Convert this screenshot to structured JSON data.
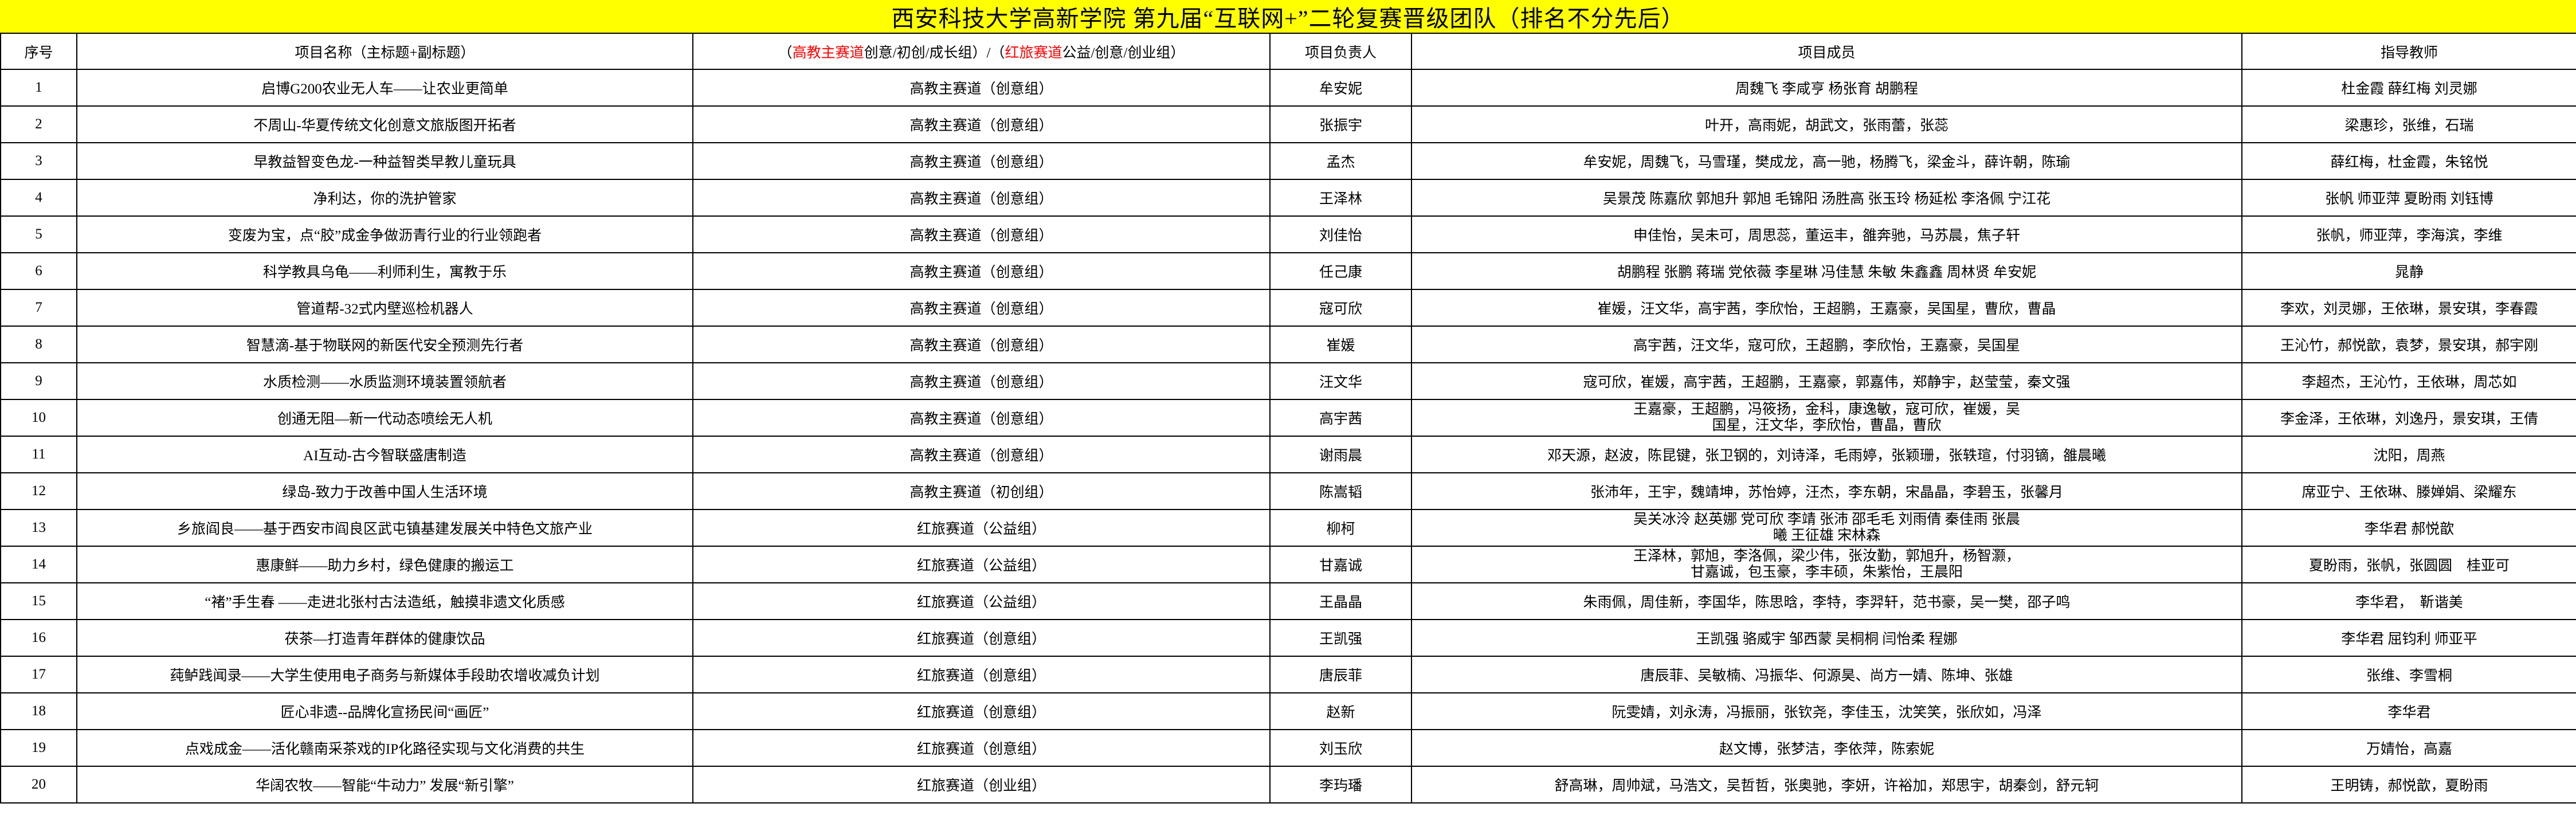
{
  "title": "西安科技大学高新学院 第九届“互联网+”二轮复赛晋级团队（排名不分先后）",
  "headers": {
    "index": "序号",
    "project": "项目名称（主标题+副标题）",
    "track_p1": "（",
    "track_red1": "高教主赛道",
    "track_p2": "创意/初创/成长组）/（",
    "track_red2": "红旅赛道",
    "track_p3": "公益/创意/创业组）",
    "leader": "项目负责人",
    "members": "项目成员",
    "advisors": "指导教师"
  },
  "colors": {
    "title_bg": "#ffff00",
    "highlight_text": "#ff0000"
  },
  "rows": [
    {
      "no": "1",
      "project": "启博G200农业无人车——让农业更简单",
      "track": "高教主赛道（创意组）",
      "leader": "牟安妮",
      "members": "周魏飞 李咸亨 杨张育 胡鹏程",
      "advisors": "杜金霞 薛红梅 刘灵娜"
    },
    {
      "no": "2",
      "project": "不周山-华夏传统文化创意文旅版图开拓者",
      "track": "高教主赛道（创意组）",
      "leader": "张振宇",
      "members": "叶开，高雨妮，胡武文，张雨蕾，张蕊",
      "advisors": "梁惠珍，张维，石瑞"
    },
    {
      "no": "3",
      "project": "早教益智变色龙-一种益智类早教儿童玩具",
      "track": "高教主赛道（创意组）",
      "leader": "孟杰",
      "members": "牟安妮，周魏飞，马雪瑾，樊成龙，高一驰，杨腾飞，梁金斗，薛许朝，陈瑜",
      "advisors": "薛红梅，杜金霞，朱铭悦"
    },
    {
      "no": "4",
      "project": "净利达，你的洗护管家",
      "track": "高教主赛道（创意组）",
      "leader": "王泽林",
      "members": "吴景茂 陈嘉欣 郭旭升 郭旭 毛锦阳 汤胜高 张玉玲 杨延松 李洛佩 宁江花",
      "advisors": "张帆 师亚萍 夏盼雨 刘钰博"
    },
    {
      "no": "5",
      "project": "变废为宝，点“胶”成金争做沥青行业的行业领跑者",
      "track": "高教主赛道（创意组）",
      "leader": "刘佳怡",
      "members": "申佳怡，吴未可，周思蕊，董运丰，雒奔驰，马苏晨，焦子轩",
      "advisors": "张帆，师亚萍，李海滨，李维"
    },
    {
      "no": "6",
      "project": "科学教具乌龟——利师利生，寓教于乐",
      "track": "高教主赛道（创意组）",
      "leader": "任己康",
      "members": "胡鹏程 张鹏 蒋瑞 党依薇 李星琳 冯佳慧 朱敏 朱鑫鑫 周林贤 牟安妮",
      "advisors": "晁静"
    },
    {
      "no": "7",
      "project": "管道帮-32式内壁巡检机器人",
      "track": "高教主赛道（创意组）",
      "leader": "寇可欣",
      "members": "崔媛，汪文华，高宇茜，李欣怡，王超鹏，王嘉豪，吴国星，曹欣，曹晶",
      "advisors": "李欢，刘灵娜，王依琳，景安琪，李春霞"
    },
    {
      "no": "8",
      "project": "智慧滴-基于物联网的新医代安全预测先行者",
      "track": "高教主赛道（创意组）",
      "leader": "崔媛",
      "members": "高宇茜，汪文华，寇可欣，王超鹏，李欣怡，王嘉豪，吴国星",
      "advisors": "王沁竹，郝悦歆，袁梦，景安琪，郝宇刚"
    },
    {
      "no": "9",
      "project": "水质检测——水质监测环境装置领航者",
      "track": "高教主赛道（创意组）",
      "leader": "汪文华",
      "members": "寇可欣，崔媛，高宇茜，王超鹏，王嘉豪，郭嘉伟，郑静宇，赵莹莹，秦文强",
      "advisors": "李超杰，王沁竹，王依琳，周芯如"
    },
    {
      "no": "10",
      "project": "创通无阻—新一代动态喷绘无人机",
      "track": "高教主赛道（创意组）",
      "leader": "高宇茜",
      "members": "王嘉豪，王超鹏，冯筱扬，金科，康逸敏，寇可欣，崔媛，吴国星，汪文华，李欣怡，曹晶，曹欣",
      "advisors": "李金泽，王依琳，刘逸丹，景安琪，王倩"
    },
    {
      "no": "11",
      "project": "AI互动-古今智联盛唐制造",
      "track": "高教主赛道（创意组）",
      "leader": "谢雨晨",
      "members": "邓天源，赵波，陈昆键，张卫钢的，刘诗泽，毛雨婷，张颖珊，张轶瑄，付羽镝，雒晨曦",
      "advisors": "沈阳，周燕"
    },
    {
      "no": "12",
      "project": "绿岛-致力于改善中国人生活环境",
      "track": "高教主赛道（初创组）",
      "leader": "陈嵩韬",
      "members": "张沛年，王宇，魏靖坤，苏怡婷，汪杰，李东朝，宋晶晶，李碧玉，张馨月",
      "advisors": "席亚宁、王依琳、滕婵娟、梁耀东"
    },
    {
      "no": "13",
      "project": "乡旅阎良——基于西安市阎良区武屯镇基建发展关中特色文旅产业",
      "track": "红旅赛道（公益组）",
      "leader": "柳柯",
      "members": "吴关冰泠 赵英娜 党可欣 李靖 张沛 邵毛毛 刘雨倩 秦佳雨 张晨曦 王征雄 宋林森",
      "advisors": "李华君 郝悦歆"
    },
    {
      "no": "14",
      "project": "惠康鲜——助力乡村，绿色健康的搬运工",
      "track": "红旅赛道（公益组）",
      "leader": "甘嘉诚",
      "members": "王泽林，郭旭，李洛佩，梁少伟，张汝勤，郭旭升，杨智灏，甘嘉诚，包玉豪，李丰硕，朱紫怡，王晨阳",
      "advisors": "夏盼雨，张帆，张圆圆　桂亚可"
    },
    {
      "no": "15",
      "project": "“褚”手生春 ——走进北张村古法造纸，触摸非遗文化质感",
      "track": "红旅赛道（公益组）",
      "leader": "王晶晶",
      "members": "朱雨佩，周佳新，李国华，陈思晗，李特，李羿轩，范书豪，吴一樊，邵子鸣",
      "advisors": "李华君，　靳谐美"
    },
    {
      "no": "16",
      "project": "茯茶—打造青年群体的健康饮品",
      "track": "红旅赛道（创意组）",
      "leader": "王凯强",
      "members": "王凯强 骆威宇 邹西蒙 吴桐桐 闫怡柔 程娜",
      "advisors": "李华君 屈钧利 师亚平"
    },
    {
      "no": "17",
      "project": "莼鲈践闻录——大学生使用电子商务与新媒体手段助农增收减负计划",
      "track": "红旅赛道（创意组）",
      "leader": "唐辰菲",
      "members": "唐辰菲、吴敏楠、冯振华、何源昊、尚方一婧、陈坤、张雄",
      "advisors": "张维、李雪桐"
    },
    {
      "no": "18",
      "project": "匠心非遗--品牌化宣扬民间“画匠”",
      "track": "红旅赛道（创意组）",
      "leader": "赵新",
      "members": "阮雯婧，刘永涛，冯振丽，张钦尧，李佳玉，沈笑笑，张欣如，冯泽",
      "advisors": "李华君"
    },
    {
      "no": "19",
      "project": "点戏成金——活化赣南采茶戏的IP化路径实现与文化消费的共生",
      "track": "红旅赛道（创意组）",
      "leader": "刘玉欣",
      "members": "赵文博，张梦洁，李依萍，陈索妮",
      "advisors": "万婧怡，高嘉"
    },
    {
      "no": "20",
      "project": "华阔农牧——智能“牛动力” 发展“新引擎”",
      "track": "红旅赛道（创业组）",
      "leader": "李玙璠",
      "members": "舒高琳，周帅斌，马浩文，吴哲哲，张奥驰，李妍，许裕加，郑思宇，胡秦剑，舒元轲",
      "advisors": "王明铸，郝悦歆，夏盼雨"
    }
  ]
}
